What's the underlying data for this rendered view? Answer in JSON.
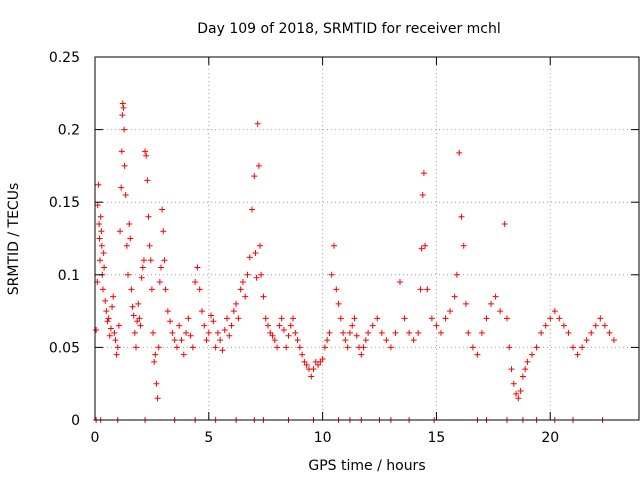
{
  "chart_data": {
    "type": "scatter",
    "title": "Day 109 of 2018, SRMTID for receiver mchl",
    "xlabel": "GPS time / hours",
    "ylabel": "SRMTID / TECUs",
    "xlim": [
      0,
      23.9
    ],
    "ylim": [
      0,
      0.25
    ],
    "xticks": [
      0,
      5,
      10,
      15,
      20
    ],
    "xtick_labels": [
      "0",
      "5",
      "10",
      "15",
      "20"
    ],
    "yticks": [
      0,
      0.05,
      0.1,
      0.15,
      0.2,
      0.25
    ],
    "ytick_labels": [
      "0",
      "0.05",
      "0.1",
      "0.15",
      "0.2",
      "0.25"
    ],
    "grid": true,
    "marker": "+",
    "color": "#ff0000",
    "points": [
      [
        0.05,
        0.062
      ],
      [
        0.1,
        0.095
      ],
      [
        0.12,
        0.148
      ],
      [
        0.15,
        0.162
      ],
      [
        0.18,
        0.135
      ],
      [
        0.2,
        0.125
      ],
      [
        0.22,
        0.11
      ],
      [
        0.25,
        0.14
      ],
      [
        0.28,
        0.13
      ],
      [
        0.3,
        0.12
      ],
      [
        0.32,
        0.1
      ],
      [
        0.35,
        0.09
      ],
      [
        0.38,
        0.115
      ],
      [
        0.4,
        0.105
      ],
      [
        0.45,
        0.082
      ],
      [
        0.5,
        0.075
      ],
      [
        0.55,
        0.068
      ],
      [
        0.6,
        0.07
      ],
      [
        0.65,
        0.058
      ],
      [
        0.7,
        0.063
      ],
      [
        0.75,
        0.078
      ],
      [
        0.8,
        0.085
      ],
      [
        0.85,
        0.06
      ],
      [
        0.9,
        0.055
      ],
      [
        0.95,
        0.045
      ],
      [
        1.0,
        0.05
      ],
      [
        1.05,
        0.065
      ],
      [
        1.1,
        0.13
      ],
      [
        1.15,
        0.16
      ],
      [
        1.18,
        0.185
      ],
      [
        1.2,
        0.21
      ],
      [
        1.22,
        0.218
      ],
      [
        1.25,
        0.215
      ],
      [
        1.28,
        0.2
      ],
      [
        1.3,
        0.175
      ],
      [
        1.35,
        0.155
      ],
      [
        1.4,
        0.12
      ],
      [
        1.45,
        0.1
      ],
      [
        1.5,
        0.135
      ],
      [
        1.55,
        0.125
      ],
      [
        1.6,
        0.09
      ],
      [
        1.65,
        0.078
      ],
      [
        1.7,
        0.072
      ],
      [
        1.75,
        0.06
      ],
      [
        1.8,
        0.05
      ],
      [
        1.85,
        0.068
      ],
      [
        1.9,
        0.08
      ],
      [
        1.95,
        0.07
      ],
      [
        2.0,
        0.065
      ],
      [
        2.05,
        0.098
      ],
      [
        2.1,
        0.105
      ],
      [
        2.15,
        0.11
      ],
      [
        2.2,
        0.185
      ],
      [
        2.25,
        0.182
      ],
      [
        2.3,
        0.165
      ],
      [
        2.35,
        0.14
      ],
      [
        2.4,
        0.12
      ],
      [
        2.45,
        0.11
      ],
      [
        2.5,
        0.09
      ],
      [
        2.55,
        0.06
      ],
      [
        2.6,
        0.04
      ],
      [
        2.65,
        0.045
      ],
      [
        2.7,
        0.025
      ],
      [
        2.75,
        0.015
      ],
      [
        2.8,
        0.05
      ],
      [
        2.85,
        0.095
      ],
      [
        2.9,
        0.105
      ],
      [
        2.95,
        0.145
      ],
      [
        3.0,
        0.13
      ],
      [
        3.05,
        0.11
      ],
      [
        3.1,
        0.09
      ],
      [
        3.2,
        0.075
      ],
      [
        3.3,
        0.068
      ],
      [
        3.4,
        0.06
      ],
      [
        3.5,
        0.055
      ],
      [
        3.6,
        0.05
      ],
      [
        3.7,
        0.065
      ],
      [
        3.8,
        0.055
      ],
      [
        3.9,
        0.045
      ],
      [
        4.0,
        0.06
      ],
      [
        4.1,
        0.07
      ],
      [
        4.2,
        0.058
      ],
      [
        4.3,
        0.05
      ],
      [
        4.4,
        0.095
      ],
      [
        4.5,
        0.105
      ],
      [
        4.6,
        0.09
      ],
      [
        4.7,
        0.075
      ],
      [
        4.8,
        0.065
      ],
      [
        4.9,
        0.055
      ],
      [
        5.0,
        0.06
      ],
      [
        5.1,
        0.072
      ],
      [
        5.2,
        0.068
      ],
      [
        5.3,
        0.05
      ],
      [
        5.4,
        0.06
      ],
      [
        5.5,
        0.055
      ],
      [
        5.6,
        0.048
      ],
      [
        5.7,
        0.062
      ],
      [
        5.8,
        0.07
      ],
      [
        5.9,
        0.058
      ],
      [
        6.0,
        0.065
      ],
      [
        6.1,
        0.075
      ],
      [
        6.2,
        0.08
      ],
      [
        6.3,
        0.07
      ],
      [
        6.4,
        0.09
      ],
      [
        6.5,
        0.095
      ],
      [
        6.6,
        0.085
      ],
      [
        6.7,
        0.1
      ],
      [
        6.8,
        0.112
      ],
      [
        6.9,
        0.145
      ],
      [
        7.0,
        0.168
      ],
      [
        7.05,
        0.115
      ],
      [
        7.1,
        0.098
      ],
      [
        7.15,
        0.204
      ],
      [
        7.2,
        0.175
      ],
      [
        7.25,
        0.12
      ],
      [
        7.3,
        0.1
      ],
      [
        7.4,
        0.085
      ],
      [
        7.5,
        0.07
      ],
      [
        7.6,
        0.065
      ],
      [
        7.7,
        0.06
      ],
      [
        7.8,
        0.058
      ],
      [
        7.9,
        0.055
      ],
      [
        8.0,
        0.05
      ],
      [
        8.1,
        0.065
      ],
      [
        8.2,
        0.07
      ],
      [
        8.3,
        0.062
      ],
      [
        8.4,
        0.05
      ],
      [
        8.5,
        0.058
      ],
      [
        8.6,
        0.065
      ],
      [
        8.7,
        0.07
      ],
      [
        8.8,
        0.06
      ],
      [
        8.9,
        0.055
      ],
      [
        9.0,
        0.05
      ],
      [
        9.1,
        0.045
      ],
      [
        9.2,
        0.04
      ],
      [
        9.3,
        0.038
      ],
      [
        9.4,
        0.035
      ],
      [
        9.5,
        0.03
      ],
      [
        9.6,
        0.035
      ],
      [
        9.7,
        0.04
      ],
      [
        9.8,
        0.038
      ],
      [
        9.9,
        0.04
      ],
      [
        10.0,
        0.042
      ],
      [
        10.1,
        0.05
      ],
      [
        10.2,
        0.055
      ],
      [
        10.3,
        0.06
      ],
      [
        10.4,
        0.1
      ],
      [
        10.5,
        0.12
      ],
      [
        10.6,
        0.09
      ],
      [
        10.7,
        0.08
      ],
      [
        10.8,
        0.07
      ],
      [
        10.9,
        0.06
      ],
      [
        11.0,
        0.055
      ],
      [
        11.1,
        0.05
      ],
      [
        11.2,
        0.06
      ],
      [
        11.3,
        0.065
      ],
      [
        11.4,
        0.07
      ],
      [
        11.5,
        0.058
      ],
      [
        11.6,
        0.05
      ],
      [
        11.7,
        0.045
      ],
      [
        11.8,
        0.05
      ],
      [
        11.9,
        0.055
      ],
      [
        12.0,
        0.06
      ],
      [
        12.2,
        0.065
      ],
      [
        12.4,
        0.07
      ],
      [
        12.6,
        0.06
      ],
      [
        12.8,
        0.055
      ],
      [
        13.0,
        0.05
      ],
      [
        13.2,
        0.06
      ],
      [
        13.4,
        0.095
      ],
      [
        13.6,
        0.07
      ],
      [
        13.8,
        0.06
      ],
      [
        14.0,
        0.055
      ],
      [
        14.2,
        0.06
      ],
      [
        14.3,
        0.09
      ],
      [
        14.35,
        0.118
      ],
      [
        14.4,
        0.155
      ],
      [
        14.45,
        0.17
      ],
      [
        14.5,
        0.12
      ],
      [
        14.6,
        0.09
      ],
      [
        14.8,
        0.07
      ],
      [
        15.0,
        0.065
      ],
      [
        15.2,
        0.06
      ],
      [
        15.4,
        0.07
      ],
      [
        15.6,
        0.075
      ],
      [
        15.8,
        0.085
      ],
      [
        15.9,
        0.1
      ],
      [
        16.0,
        0.184
      ],
      [
        16.1,
        0.14
      ],
      [
        16.2,
        0.12
      ],
      [
        16.3,
        0.08
      ],
      [
        16.4,
        0.06
      ],
      [
        16.6,
        0.05
      ],
      [
        16.8,
        0.045
      ],
      [
        17.0,
        0.06
      ],
      [
        17.2,
        0.07
      ],
      [
        17.4,
        0.08
      ],
      [
        17.6,
        0.085
      ],
      [
        17.8,
        0.075
      ],
      [
        18.0,
        0.135
      ],
      [
        18.1,
        0.07
      ],
      [
        18.2,
        0.05
      ],
      [
        18.3,
        0.035
      ],
      [
        18.4,
        0.025
      ],
      [
        18.5,
        0.018
      ],
      [
        18.6,
        0.015
      ],
      [
        18.7,
        0.02
      ],
      [
        18.8,
        0.03
      ],
      [
        18.9,
        0.035
      ],
      [
        19.0,
        0.04
      ],
      [
        19.2,
        0.045
      ],
      [
        19.4,
        0.05
      ],
      [
        19.6,
        0.06
      ],
      [
        19.8,
        0.065
      ],
      [
        20.0,
        0.07
      ],
      [
        20.2,
        0.075
      ],
      [
        20.4,
        0.07
      ],
      [
        20.6,
        0.065
      ],
      [
        20.8,
        0.06
      ],
      [
        21.0,
        0.05
      ],
      [
        21.2,
        0.045
      ],
      [
        21.4,
        0.05
      ],
      [
        21.6,
        0.055
      ],
      [
        21.8,
        0.06
      ],
      [
        22.0,
        0.065
      ],
      [
        22.2,
        0.07
      ],
      [
        22.4,
        0.065
      ],
      [
        22.6,
        0.06
      ],
      [
        22.8,
        0.055
      ]
    ],
    "zero_points_x": [
      0.05,
      0.25,
      1.0,
      2.2,
      3.5,
      4.4,
      5.3,
      6.2,
      7.0,
      7.4,
      8.5,
      9.6,
      10.7,
      11.2,
      11.7,
      12.5,
      13.0,
      13.8,
      14.9,
      16.8,
      17.2,
      18.1,
      18.8,
      19.4,
      20.2,
      21.0,
      22.3
    ]
  }
}
